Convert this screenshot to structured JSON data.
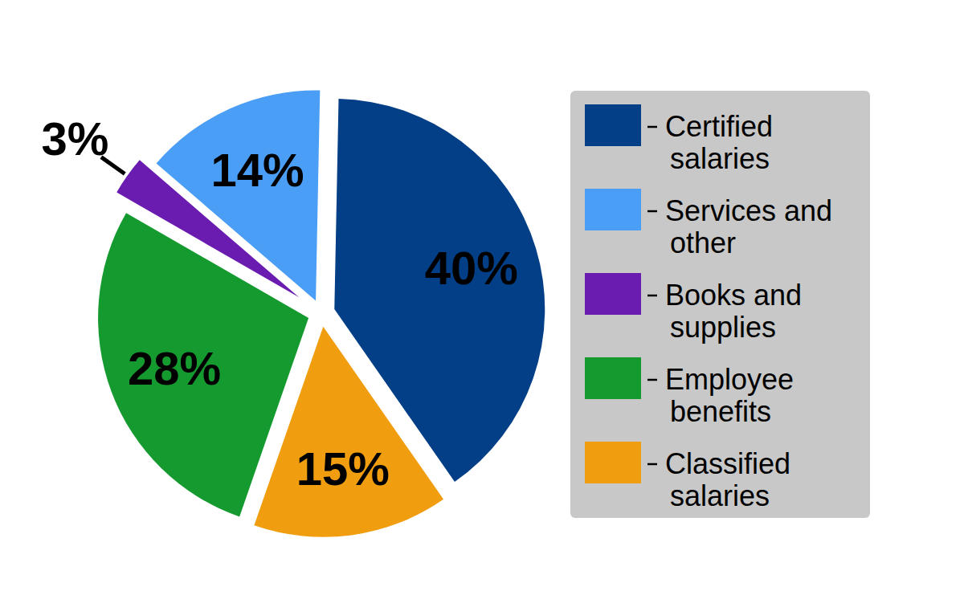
{
  "chart_data": {
    "type": "pie",
    "categories": [
      "Certified salaries",
      "Services and other",
      "Books and supplies",
      "Employee benefits",
      "Classified salaries"
    ],
    "values": [
      40,
      14,
      3,
      28,
      15
    ],
    "value_labels": [
      "40%",
      "14%",
      "3%",
      "28%",
      "15%"
    ],
    "colors": [
      "#033f87",
      "#4a9ef5",
      "#6a1bb0",
      "#159a2f",
      "#f09e10"
    ],
    "data_labels": true,
    "legend": "right"
  }
}
